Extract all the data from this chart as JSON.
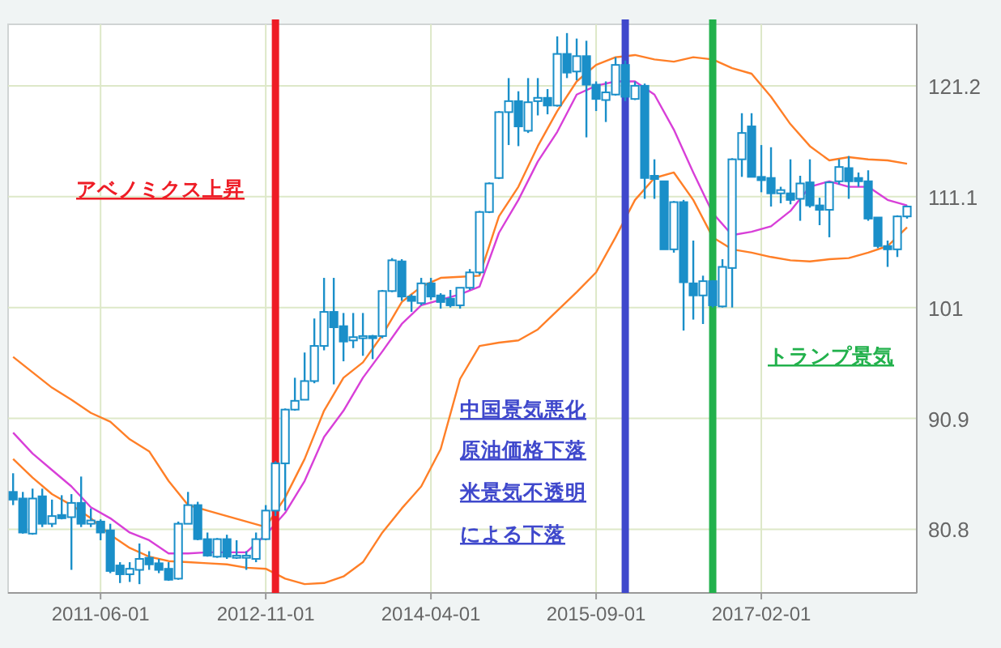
{
  "chart_data": {
    "type": "candlestick",
    "color": "#1a8fc9",
    "x": [
      "2010-09",
      "2010-10",
      "2010-11",
      "2010-12",
      "2011-01",
      "2011-02",
      "2011-03",
      "2011-04",
      "2011-05",
      "2011-06",
      "2011-07",
      "2011-08",
      "2011-09",
      "2011-10",
      "2011-11",
      "2011-12",
      "2012-01",
      "2012-02",
      "2012-03",
      "2012-04",
      "2012-05",
      "2012-06",
      "2012-07",
      "2012-08",
      "2012-09",
      "2012-10",
      "2012-11",
      "2012-12",
      "2013-01",
      "2013-02",
      "2013-03",
      "2013-04",
      "2013-05",
      "2013-06",
      "2013-07",
      "2013-08",
      "2013-09",
      "2013-10",
      "2013-11",
      "2013-12",
      "2014-01",
      "2014-02",
      "2014-03",
      "2014-04",
      "2014-05",
      "2014-06",
      "2014-07",
      "2014-08",
      "2014-09",
      "2014-10",
      "2014-11",
      "2014-12",
      "2015-01",
      "2015-02",
      "2015-03",
      "2015-04",
      "2015-05",
      "2015-06",
      "2015-07",
      "2015-08",
      "2015-09",
      "2015-10",
      "2015-11",
      "2015-12",
      "2016-01",
      "2016-02",
      "2016-03",
      "2016-04",
      "2016-05",
      "2016-06",
      "2016-07",
      "2016-08",
      "2016-09",
      "2016-10",
      "2016-11",
      "2016-12",
      "2017-01",
      "2017-02",
      "2017-03",
      "2017-04",
      "2017-05",
      "2017-06",
      "2017-07",
      "2017-08",
      "2017-09",
      "2017-10",
      "2017-11",
      "2017-12",
      "2018-01",
      "2018-02",
      "2018-03",
      "2018-04",
      "2018-05"
    ],
    "ohlc": [
      [
        84.2,
        85.9,
        83.0,
        83.5
      ],
      [
        83.6,
        84.2,
        80.4,
        80.5
      ],
      [
        80.4,
        84.5,
        80.3,
        83.6
      ],
      [
        83.8,
        84.5,
        81.0,
        81.3
      ],
      [
        81.3,
        83.5,
        81.0,
        82.0
      ],
      [
        82.1,
        83.9,
        81.7,
        81.8
      ],
      [
        81.9,
        84.0,
        77.1,
        83.2
      ],
      [
        83.2,
        85.6,
        81.0,
        81.3
      ],
      [
        81.3,
        82.7,
        81.0,
        81.6
      ],
      [
        81.5,
        81.7,
        79.8,
        80.5
      ],
      [
        80.7,
        81.3,
        76.8,
        77.0
      ],
      [
        77.5,
        77.8,
        75.9,
        76.7
      ],
      [
        76.7,
        77.8,
        76.0,
        77.2
      ],
      [
        77.1,
        79.5,
        75.8,
        78.1
      ],
      [
        78.2,
        78.8,
        77.1,
        77.6
      ],
      [
        77.7,
        78.1,
        76.8,
        77.1
      ],
      [
        77.2,
        77.8,
        76.1,
        76.2
      ],
      [
        76.3,
        81.5,
        76.2,
        81.3
      ],
      [
        81.3,
        84.2,
        81.3,
        83.0
      ],
      [
        83.0,
        83.3,
        79.8,
        79.9
      ],
      [
        79.9,
        80.5,
        78.3,
        78.4
      ],
      [
        78.3,
        80.0,
        78.2,
        79.9
      ],
      [
        79.9,
        80.3,
        78.1,
        78.3
      ],
      [
        78.2,
        79.8,
        78.1,
        78.4
      ],
      [
        78.2,
        78.8,
        77.1,
        78.4
      ],
      [
        78.1,
        80.5,
        77.8,
        79.9
      ],
      [
        79.9,
        83.0,
        79.8,
        82.5
      ],
      [
        82.5,
        87.0,
        82.0,
        86.8
      ],
      [
        86.8,
        91.8,
        82.5,
        91.7
      ],
      [
        91.7,
        94.6,
        91.6,
        92.5
      ],
      [
        92.6,
        96.9,
        92.6,
        94.3
      ],
      [
        94.3,
        100.0,
        94.1,
        97.5
      ],
      [
        97.5,
        103.7,
        97.1,
        100.6
      ],
      [
        100.6,
        103.7,
        94.0,
        99.2
      ],
      [
        99.3,
        100.5,
        96.1,
        97.9
      ],
      [
        98.0,
        100.5,
        97.3,
        98.3
      ],
      [
        98.2,
        100.5,
        96.6,
        98.4
      ],
      [
        98.4,
        98.5,
        96.3,
        98.2
      ],
      [
        98.4,
        102.6,
        98.2,
        102.5
      ],
      [
        102.5,
        105.5,
        102.4,
        105.3
      ],
      [
        105.2,
        105.4,
        101.6,
        102.0
      ],
      [
        102.0,
        102.2,
        100.6,
        101.6
      ],
      [
        101.4,
        103.7,
        101.2,
        103.2
      ],
      [
        103.2,
        103.7,
        101.7,
        102.0
      ],
      [
        102.1,
        102.3,
        100.9,
        101.5
      ],
      [
        101.8,
        102.6,
        101.0,
        101.2
      ],
      [
        101.2,
        102.8,
        100.9,
        102.8
      ],
      [
        102.8,
        104.5,
        102.6,
        104.2
      ],
      [
        104.2,
        109.8,
        104.0,
        109.7
      ],
      [
        109.7,
        112.4,
        109.6,
        112.3
      ],
      [
        112.8,
        118.9,
        112.7,
        118.8
      ],
      [
        118.8,
        121.9,
        115.8,
        119.8
      ],
      [
        119.8,
        120.7,
        115.7,
        117.5
      ],
      [
        117.1,
        121.9,
        116.9,
        119.7
      ],
      [
        119.8,
        121.9,
        118.5,
        120.1
      ],
      [
        120.1,
        120.9,
        118.6,
        119.4
      ],
      [
        119.4,
        125.7,
        119.3,
        124.1
      ],
      [
        124.1,
        126.0,
        121.9,
        122.4
      ],
      [
        122.5,
        125.5,
        121.7,
        123.9
      ],
      [
        123.9,
        125.3,
        116.5,
        121.3
      ],
      [
        121.3,
        121.6,
        118.9,
        120.0
      ],
      [
        119.9,
        121.6,
        117.9,
        120.6
      ],
      [
        120.4,
        123.8,
        120.3,
        123.1
      ],
      [
        123.1,
        123.5,
        119.8,
        120.2
      ],
      [
        120.0,
        121.6,
        119.9,
        121.2
      ],
      [
        121.2,
        121.4,
        110.9,
        112.8
      ],
      [
        113.0,
        114.5,
        110.9,
        112.7
      ],
      [
        112.5,
        112.5,
        106.3,
        106.3
      ],
      [
        106.3,
        110.7,
        106.0,
        110.6
      ],
      [
        110.6,
        110.8,
        98.9,
        103.3
      ],
      [
        103.2,
        107.1,
        99.9,
        102.1
      ],
      [
        102.1,
        103.9,
        99.5,
        103.4
      ],
      [
        103.4,
        103.5,
        101.0,
        101.2
      ],
      [
        101.1,
        105.4,
        101.0,
        104.7
      ],
      [
        104.6,
        114.6,
        101.0,
        114.5
      ],
      [
        114.5,
        118.7,
        112.9,
        116.9
      ],
      [
        117.5,
        118.7,
        112.9,
        112.9
      ],
      [
        112.9,
        115.8,
        111.5,
        112.6
      ],
      [
        112.8,
        115.6,
        110.2,
        111.4
      ],
      [
        111.4,
        112.0,
        110.5,
        111.7
      ],
      [
        111.4,
        114.5,
        110.4,
        110.8
      ],
      [
        110.9,
        113.0,
        108.9,
        112.3
      ],
      [
        112.4,
        114.5,
        110.1,
        110.3
      ],
      [
        110.3,
        111.0,
        108.5,
        109.9
      ],
      [
        109.9,
        112.5,
        107.4,
        112.4
      ],
      [
        112.5,
        114.5,
        112.2,
        113.8
      ],
      [
        113.7,
        114.8,
        110.9,
        112.5
      ],
      [
        112.8,
        113.3,
        112.0,
        112.5
      ],
      [
        112.5,
        113.5,
        108.9,
        109.1
      ],
      [
        109.2,
        109.2,
        106.4,
        106.6
      ],
      [
        106.6,
        107.1,
        104.7,
        106.3
      ],
      [
        106.3,
        109.4,
        105.6,
        109.3
      ],
      [
        109.3,
        110.3,
        109.1,
        110.2
      ]
    ],
    "series": [
      {
        "type": "line",
        "color": "#ff7f27",
        "x": [
          "2010-09",
          "2010-11",
          "2011-01",
          "2011-03",
          "2011-05",
          "2011-07",
          "2011-09",
          "2011-11",
          "2012-01",
          "2012-03",
          "2012-05",
          "2012-07",
          "2012-09",
          "2012-11",
          "2013-01",
          "2013-03",
          "2013-05",
          "2013-07",
          "2013-09",
          "2013-11",
          "2014-01",
          "2014-03",
          "2014-05",
          "2014-07",
          "2014-09",
          "2014-11",
          "2015-01",
          "2015-03",
          "2015-05",
          "2015-07",
          "2015-09",
          "2015-11",
          "2016-01",
          "2016-03",
          "2016-05",
          "2016-07",
          "2016-09",
          "2016-11",
          "2017-01",
          "2017-03",
          "2017-05",
          "2017-07",
          "2017-09",
          "2017-11",
          "2018-01",
          "2018-03",
          "2018-05"
        ],
        "values": [
          96.5,
          95.1,
          93.7,
          92.6,
          91.4,
          90.6,
          89.0,
          87.9,
          85.2,
          83.0,
          82.5,
          82.0,
          81.5,
          81.0,
          83.7,
          87.2,
          91.6,
          94.6,
          96.0,
          98.5,
          101.5,
          102.9,
          103.7,
          103.8,
          103.9,
          109.3,
          112.0,
          115.7,
          118.9,
          121.6,
          123.1,
          123.8,
          124.0,
          123.6,
          123.4,
          123.8,
          123.6,
          122.8,
          122.3,
          120.2,
          117.7,
          115.7,
          114.4,
          114.7,
          114.5,
          114.4,
          114.1
        ]
      },
      {
        "type": "line",
        "color": "#d83fd8",
        "x": [
          "2010-09",
          "2010-11",
          "2011-01",
          "2011-03",
          "2011-05",
          "2011-07",
          "2011-09",
          "2011-11",
          "2012-01",
          "2012-03",
          "2012-05",
          "2012-07",
          "2012-09",
          "2012-11",
          "2013-01",
          "2013-03",
          "2013-05",
          "2013-07",
          "2013-09",
          "2013-11",
          "2014-01",
          "2014-03",
          "2014-05",
          "2014-07",
          "2014-09",
          "2014-11",
          "2015-01",
          "2015-03",
          "2015-05",
          "2015-07",
          "2015-09",
          "2015-11",
          "2016-01",
          "2016-03",
          "2016-05",
          "2016-07",
          "2016-09",
          "2016-11",
          "2017-01",
          "2017-03",
          "2017-05",
          "2017-07",
          "2017-09",
          "2017-11",
          "2018-01",
          "2018-03",
          "2018-05"
        ],
        "values": [
          89.6,
          87.7,
          86.2,
          84.7,
          82.8,
          81.8,
          80.5,
          79.8,
          78.6,
          78.6,
          78.7,
          78.7,
          78.7,
          80.3,
          82.3,
          85.2,
          89.2,
          91.6,
          94.6,
          97.0,
          99.5,
          101.2,
          101.7,
          102.2,
          102.9,
          107.8,
          110.8,
          114.3,
          117.0,
          120.4,
          121.2,
          121.6,
          121.6,
          120.4,
          117.2,
          113.3,
          109.6,
          107.6,
          107.9,
          108.4,
          109.8,
          112.0,
          112.5,
          112.0,
          112.0,
          110.8,
          110.3
        ]
      },
      {
        "type": "line",
        "color": "#ff7f27",
        "x": [
          "2010-09",
          "2010-11",
          "2011-01",
          "2011-03",
          "2011-05",
          "2011-07",
          "2011-09",
          "2011-11",
          "2012-01",
          "2012-03",
          "2012-05",
          "2012-07",
          "2012-09",
          "2012-11",
          "2013-01",
          "2013-03",
          "2013-05",
          "2013-07",
          "2013-09",
          "2013-11",
          "2014-01",
          "2014-03",
          "2014-05",
          "2014-07",
          "2014-09",
          "2014-11",
          "2015-01",
          "2015-03",
          "2015-05",
          "2015-07",
          "2015-09",
          "2015-11",
          "2016-01",
          "2016-03",
          "2016-05",
          "2016-07",
          "2016-09",
          "2016-11",
          "2017-01",
          "2017-03",
          "2017-05",
          "2017-07",
          "2017-09",
          "2017-11",
          "2018-01",
          "2018-03",
          "2018-05"
        ],
        "values": [
          87.2,
          85.5,
          84.0,
          83.0,
          81.8,
          80.3,
          79.1,
          78.3,
          77.9,
          77.8,
          77.7,
          77.6,
          77.3,
          77.2,
          76.3,
          75.8,
          75.9,
          76.5,
          77.8,
          80.5,
          82.7,
          84.7,
          88.1,
          94.5,
          97.5,
          97.8,
          98.0,
          99.0,
          100.7,
          102.4,
          104.2,
          107.4,
          110.8,
          112.8,
          113.3,
          110.8,
          107.4,
          106.3,
          106.0,
          105.6,
          105.3,
          105.2,
          105.4,
          105.5,
          106.0,
          106.6,
          108.3
        ]
      }
    ],
    "xlim": [
      "2010-08-16",
      "2018-06-01"
    ],
    "xticks": [
      {
        "value": "2011-06",
        "label": "2011-06-01"
      },
      {
        "value": "2012-11",
        "label": "2012-11-01"
      },
      {
        "value": "2014-04",
        "label": "2014-04-01"
      },
      {
        "value": "2015-09",
        "label": "2015-09-01"
      },
      {
        "value": "2017-02",
        "label": "2017-02-01"
      }
    ],
    "ylim": [
      75.0,
      126.8
    ],
    "yticks": [
      80.8,
      90.9,
      101,
      111.1,
      121.2
    ],
    "grid": true,
    "ref_lines": [
      {
        "axis": "x",
        "value": "2012-12",
        "color": "#ee1c25"
      },
      {
        "axis": "x",
        "value": "2015-12",
        "color": "#3f48cc"
      },
      {
        "axis": "x",
        "value": "2016-09",
        "color": "#22b14c"
      }
    ],
    "annotations": [
      "アベノミクス上昇",
      "中国景気悪化",
      "原油価格下落",
      "米景気不透明",
      "による下落",
      "トランプ景気"
    ]
  }
}
